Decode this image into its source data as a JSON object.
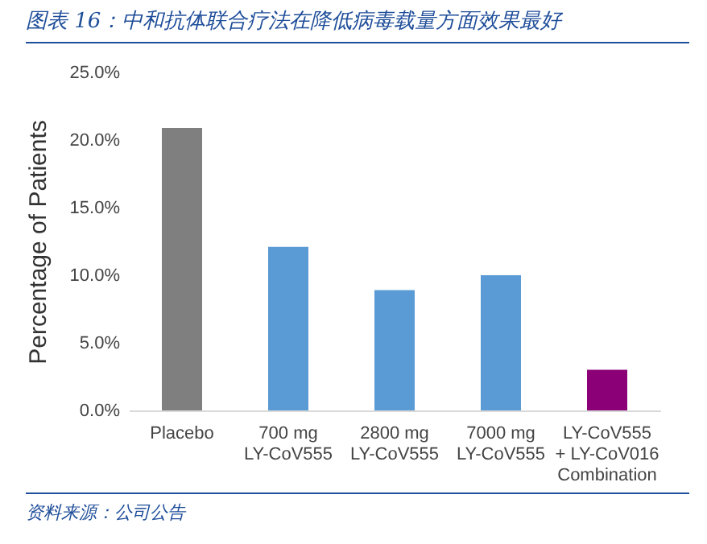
{
  "chart_data": {
    "type": "bar",
    "title": "图表 16：中和抗体联合疗法在降低病毒载量方面效果最好",
    "categories": [
      "Placebo",
      "700 mg\nLY-CoV555",
      "2800 mg\nLY-CoV555",
      "7000 mg\nLY-CoV555",
      "LY-CoV555\n+ LY-CoV016\nCombination"
    ],
    "values": [
      20.9,
      12.1,
      8.9,
      10.0,
      3.0
    ],
    "colors": [
      "#7f7f7f",
      "#5b9bd5",
      "#5b9bd5",
      "#5b9bd5",
      "#8b0077"
    ],
    "ylabel": "Percentage of Patients",
    "ylim": [
      0,
      25
    ],
    "yticks": [
      {
        "value": 0,
        "label": "0.0%"
      },
      {
        "value": 5,
        "label": "5.0%"
      },
      {
        "value": 10,
        "label": "10.0%"
      },
      {
        "value": 15,
        "label": "15.0%"
      },
      {
        "value": 20,
        "label": "20.0%"
      },
      {
        "value": 25,
        "label": "25.0%"
      }
    ],
    "grid": false,
    "legend": false,
    "annotations": [
      "资料来源：公司公告"
    ]
  }
}
